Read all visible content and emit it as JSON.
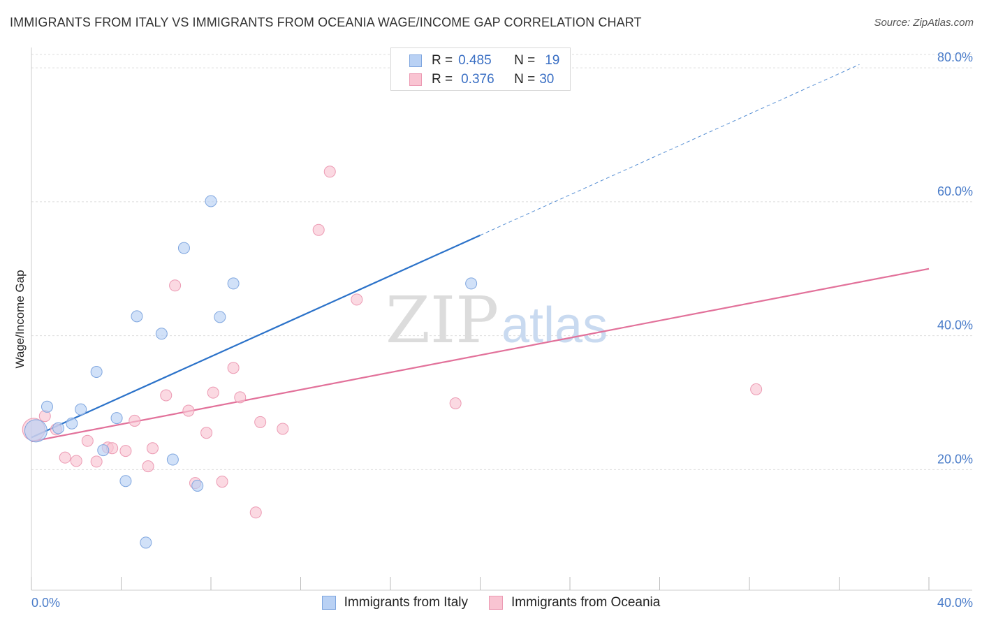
{
  "header": {
    "title": "IMMIGRANTS FROM ITALY VS IMMIGRANTS FROM OCEANIA WAGE/INCOME GAP CORRELATION CHART",
    "source": "Source: ZipAtlas.com"
  },
  "watermark": {
    "zip": "ZIP",
    "atlas": "atlas"
  },
  "legend": {
    "r_label": "R =",
    "n_label": "N =",
    "rows": [
      {
        "r": "0.485",
        "n": "19"
      },
      {
        "r": "0.376",
        "n": "30"
      }
    ]
  },
  "colors": {
    "italy_fill": "#b9d1f4",
    "italy_stroke": "#7fa6df",
    "italy_line": "#2b72c9",
    "oceania_fill": "#f9c4d2",
    "oceania_stroke": "#ec9ab3",
    "oceania_line": "#e2719a",
    "tick_label": "#4a7cc9"
  },
  "chart_data": {
    "type": "scatter",
    "title": "IMMIGRANTS FROM ITALY VS IMMIGRANTS FROM OCEANIA WAGE/INCOME GAP CORRELATION CHART",
    "xlabel": "",
    "ylabel": "Wage/Income Gap",
    "xlim": [
      0,
      40
    ],
    "ylim": [
      2,
      82
    ],
    "x_tick_labels": [
      "0.0%",
      "40.0%"
    ],
    "y_ticks": [
      20,
      40,
      60,
      80
    ],
    "y_tick_labels": [
      "20.0%",
      "40.0%",
      "60.0%",
      "80.0%"
    ],
    "grid": true,
    "series": [
      {
        "name": "Immigrants from Italy",
        "r": 0.485,
        "n": 19,
        "points": [
          {
            "x": 0.2,
            "y": 25.8,
            "big": true
          },
          {
            "x": 0.7,
            "y": 29.4
          },
          {
            "x": 1.2,
            "y": 26.2
          },
          {
            "x": 1.8,
            "y": 26.9
          },
          {
            "x": 2.2,
            "y": 29.0
          },
          {
            "x": 2.9,
            "y": 34.6
          },
          {
            "x": 3.2,
            "y": 22.9
          },
          {
            "x": 3.8,
            "y": 27.7
          },
          {
            "x": 4.2,
            "y": 18.3
          },
          {
            "x": 4.7,
            "y": 42.9
          },
          {
            "x": 5.1,
            "y": 9.1
          },
          {
            "x": 5.8,
            "y": 40.3
          },
          {
            "x": 6.3,
            "y": 21.5
          },
          {
            "x": 6.8,
            "y": 53.1
          },
          {
            "x": 7.4,
            "y": 17.6
          },
          {
            "x": 8.0,
            "y": 60.1
          },
          {
            "x": 8.4,
            "y": 42.8
          },
          {
            "x": 9.0,
            "y": 47.8
          },
          {
            "x": 19.6,
            "y": 47.8
          }
        ],
        "trend": {
          "x0": 0,
          "y0": 24.8,
          "x1": 20,
          "y1": 55.0,
          "dashed_to_x": 36.9,
          "dashed_to_y": 80.5
        }
      },
      {
        "name": "Immigrants from Oceania",
        "r": 0.376,
        "n": 30,
        "points": [
          {
            "x": 0.1,
            "y": 26.0,
            "big": true
          },
          {
            "x": 0.6,
            "y": 28.0
          },
          {
            "x": 1.1,
            "y": 26.0
          },
          {
            "x": 1.5,
            "y": 21.8
          },
          {
            "x": 2.0,
            "y": 21.3
          },
          {
            "x": 2.5,
            "y": 24.3
          },
          {
            "x": 2.9,
            "y": 21.2
          },
          {
            "x": 3.4,
            "y": 23.3
          },
          {
            "x": 3.6,
            "y": 23.2
          },
          {
            "x": 4.2,
            "y": 22.8
          },
          {
            "x": 4.6,
            "y": 27.3
          },
          {
            "x": 5.2,
            "y": 20.5
          },
          {
            "x": 5.4,
            "y": 23.2
          },
          {
            "x": 6.0,
            "y": 31.1
          },
          {
            "x": 6.4,
            "y": 47.5
          },
          {
            "x": 7.0,
            "y": 28.8
          },
          {
            "x": 7.3,
            "y": 18.0
          },
          {
            "x": 7.8,
            "y": 25.5
          },
          {
            "x": 8.1,
            "y": 31.5
          },
          {
            "x": 8.5,
            "y": 18.2
          },
          {
            "x": 9.0,
            "y": 35.2
          },
          {
            "x": 9.3,
            "y": 30.8
          },
          {
            "x": 10.0,
            "y": 13.6
          },
          {
            "x": 10.2,
            "y": 27.1
          },
          {
            "x": 11.2,
            "y": 26.1
          },
          {
            "x": 12.8,
            "y": 55.8
          },
          {
            "x": 13.3,
            "y": 64.5
          },
          {
            "x": 14.5,
            "y": 45.4
          },
          {
            "x": 18.9,
            "y": 29.9
          },
          {
            "x": 32.3,
            "y": 32.0
          }
        ],
        "trend": {
          "x0": 0,
          "y0": 24.2,
          "x1": 40,
          "y1": 50.0
        }
      }
    ]
  },
  "bottom_legend": {
    "items": [
      "Immigrants from Italy",
      "Immigrants from Oceania"
    ]
  }
}
